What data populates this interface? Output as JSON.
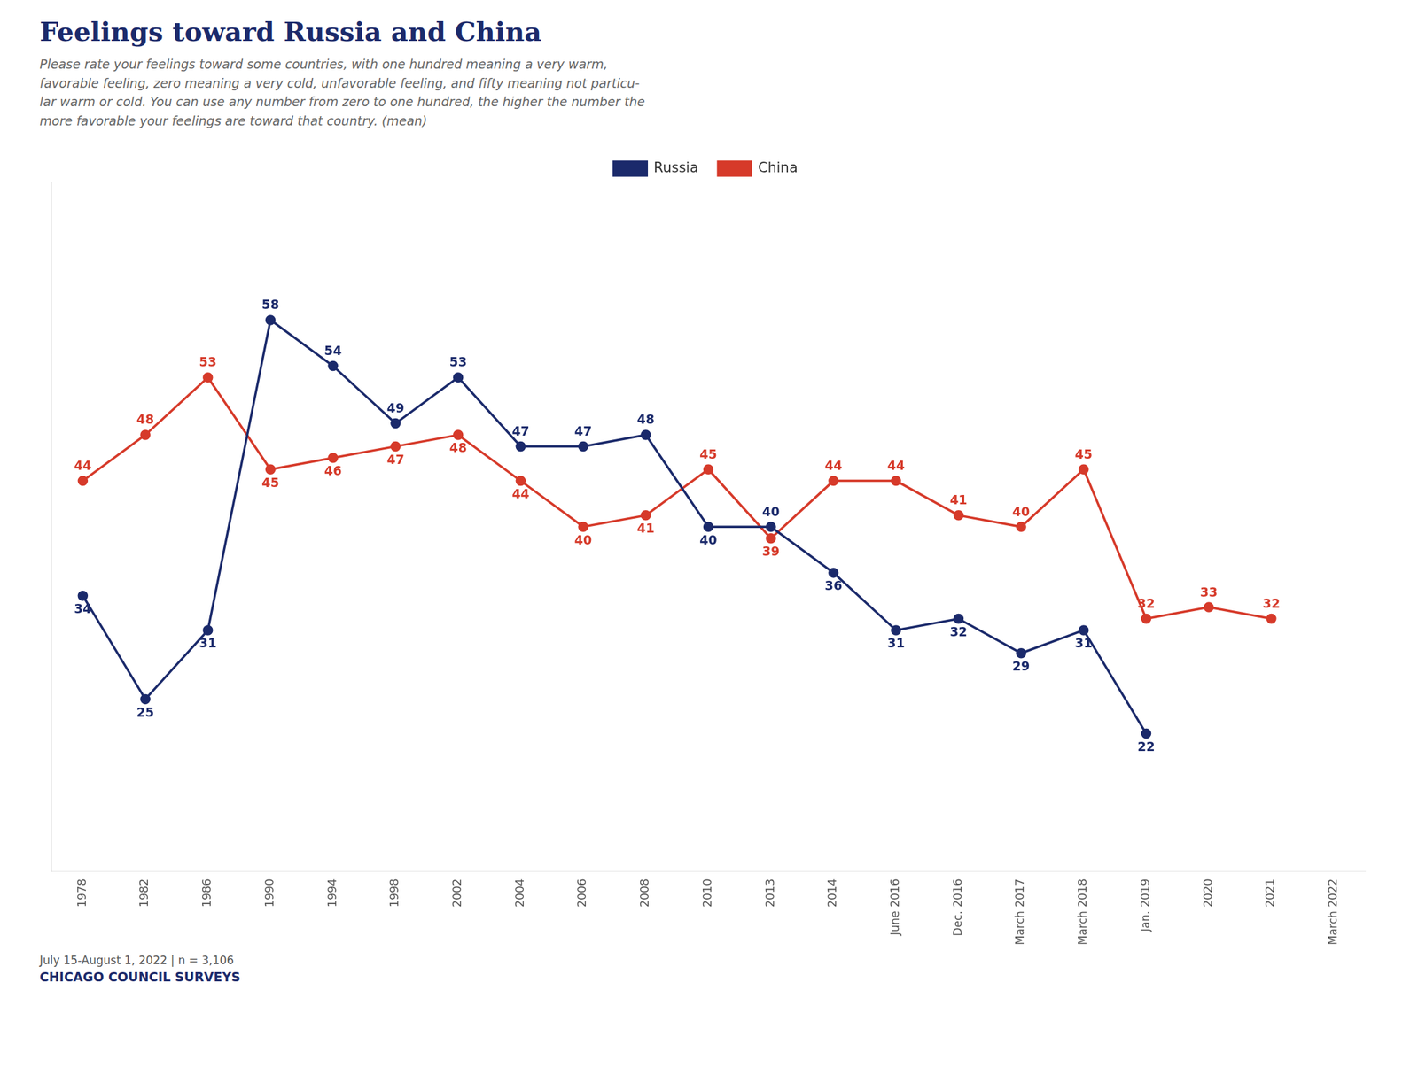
{
  "chart_data": {
    "type": "line",
    "title": "Feelings toward Russia and China",
    "subtitle": [
      "Please rate your feelings toward some countries, with one hundred meaning a very warm,",
      "favorable feeling, zero meaning a very cold, unfavorable feeling, and fifty meaning not particu-",
      "lar warm or cold. You can use any number from zero to one hundred, the higher the number the",
      "more favorable your feelings are toward that country. (mean)"
    ],
    "annotations": [
      "July 15-August 1, 2022 | n = 3,106",
      "CHICAGO COUNCIL SURVEYS"
    ],
    "categories": [
      "1978",
      "1982",
      "1986",
      "1990",
      "1994",
      "1998",
      "2002",
      "2004",
      "2006",
      "2008",
      "2010",
      "2013",
      "2014",
      "June 2016",
      "Dec. 2016",
      "March 2017",
      "March 2018",
      "Jan. 2019",
      "2020",
      "2021",
      "March 2022"
    ],
    "series": [
      {
        "name": "Russia",
        "color": "#1b2a6b",
        "values": [
          34,
          25,
          31,
          58,
          54,
          49,
          53,
          47,
          47,
          48,
          40,
          40,
          36,
          31,
          32,
          29,
          31,
          22,
          null,
          null,
          null
        ]
      },
      {
        "name": "China",
        "color": "#d63a2a",
        "values": [
          44,
          48,
          53,
          45,
          46,
          47,
          48,
          44,
          40,
          41,
          45,
          39,
          44,
          44,
          41,
          40,
          45,
          32,
          33,
          32,
          null
        ]
      }
    ],
    "ylim": [
      10,
      70
    ],
    "tick_labels": "x",
    "grid": false,
    "legend": "top",
    "data_labels": true,
    "marker": "circle"
  }
}
